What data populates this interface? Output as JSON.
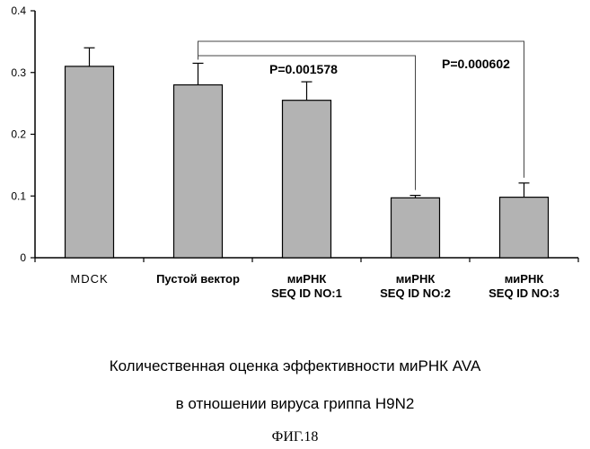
{
  "chart_data": {
    "type": "bar",
    "title": "",
    "xlabel": "",
    "ylabel": "",
    "ylim": [
      0,
      0.4
    ],
    "yticks": [
      "0",
      "0.1",
      "0.2",
      "0.3",
      "0.4"
    ],
    "categories": [
      [
        "MDCK"
      ],
      [
        "Пустой вектор"
      ],
      [
        "миРНК",
        "SEQ ID NO:1"
      ],
      [
        "миРНК",
        "SEQ ID NO:2"
      ],
      [
        "миРНК",
        "SEQ ID NO:3"
      ]
    ],
    "values": [
      0.31,
      0.28,
      0.255,
      0.097,
      0.098
    ],
    "errors": [
      0.03,
      0.035,
      0.03,
      0.004,
      0.023
    ],
    "bar_color": "#b3b3b3",
    "annotations": [
      {
        "from": 1,
        "to": 3,
        "label": "P=0.001578"
      },
      {
        "from": 1,
        "to": 4,
        "label": "P=0.000602"
      }
    ]
  },
  "caption": {
    "line1": "Количественная оценка эффективности миРНК AVA",
    "line2": "в отношении вируса гриппа H9N2"
  },
  "figure_label": "ФИГ.18"
}
